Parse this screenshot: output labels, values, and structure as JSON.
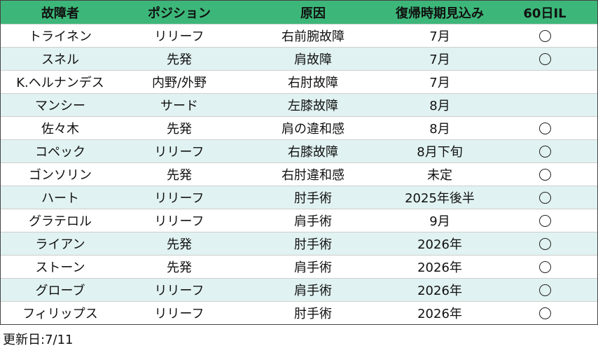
{
  "table": {
    "headers": [
      "故障者",
      "ポジション",
      "原因",
      "復帰時期見込み",
      "60日IL"
    ],
    "rows": [
      {
        "name": "トライネン",
        "position": "リリーフ",
        "cause": "右前腕故障",
        "return": "7月",
        "il60": true
      },
      {
        "name": "スネル",
        "position": "先発",
        "cause": "肩故障",
        "return": "7月",
        "il60": true
      },
      {
        "name": "K.ヘルナンデス",
        "position": "内野/外野",
        "cause": "右肘故障",
        "return": "7月",
        "il60": false
      },
      {
        "name": "マンシー",
        "position": "サード",
        "cause": "左膝故障",
        "return": "8月",
        "il60": false
      },
      {
        "name": "佐々木",
        "position": "先発",
        "cause": "肩の違和感",
        "return": "8月",
        "il60": true
      },
      {
        "name": "コペック",
        "position": "リリーフ",
        "cause": "右膝故障",
        "return": "8月下旬",
        "il60": true
      },
      {
        "name": "ゴンソリン",
        "position": "先発",
        "cause": "右肘違和感",
        "return": "未定",
        "il60": true
      },
      {
        "name": "ハート",
        "position": "リリーフ",
        "cause": "肘手術",
        "return": "2025年後半",
        "il60": true
      },
      {
        "name": "グラテロル",
        "position": "リリーフ",
        "cause": "肩手術",
        "return": "9月",
        "il60": true
      },
      {
        "name": "ライアン",
        "position": "先発",
        "cause": "肘手術",
        "return": "2026年",
        "il60": true
      },
      {
        "name": "ストーン",
        "position": "先発",
        "cause": "肩手術",
        "return": "2026年",
        "il60": true
      },
      {
        "name": "グローブ",
        "position": "リリーフ",
        "cause": "肩手術",
        "return": "2026年",
        "il60": true
      },
      {
        "name": "フィリップス",
        "position": "リリーフ",
        "cause": "肘手術",
        "return": "2026年",
        "il60": true
      }
    ],
    "il60_mark_icon": "circle-icon"
  },
  "footer": {
    "updated": "更新日:7/11"
  },
  "colors": {
    "header_bg": "#3cb779",
    "alt_row_bg": "#e0f2f1"
  }
}
